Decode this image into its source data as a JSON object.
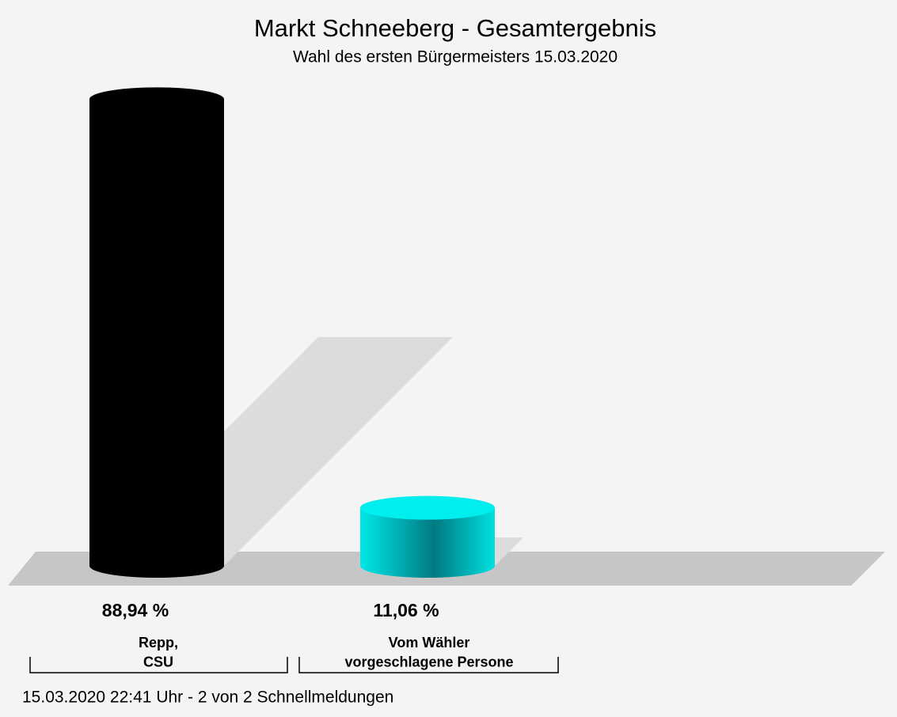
{
  "chart_data": {
    "type": "bar3d",
    "title": "Markt Schneeberg - Gesamtergebnis",
    "subtitle": "Wahl des ersten Bürgermeisters 15.03.2020",
    "categories": [
      "Repp,\nCSU",
      "Vom Wähler\nvorgeschlagene Persone"
    ],
    "values": [
      88.94,
      11.06
    ],
    "value_labels": [
      "88,94 %",
      "11,06 %"
    ],
    "colors": [
      "#000000",
      "#00eeee"
    ],
    "footer": "15.03.2020 22:41 Uhr - 2 von 2 Schnellmeldungen"
  }
}
